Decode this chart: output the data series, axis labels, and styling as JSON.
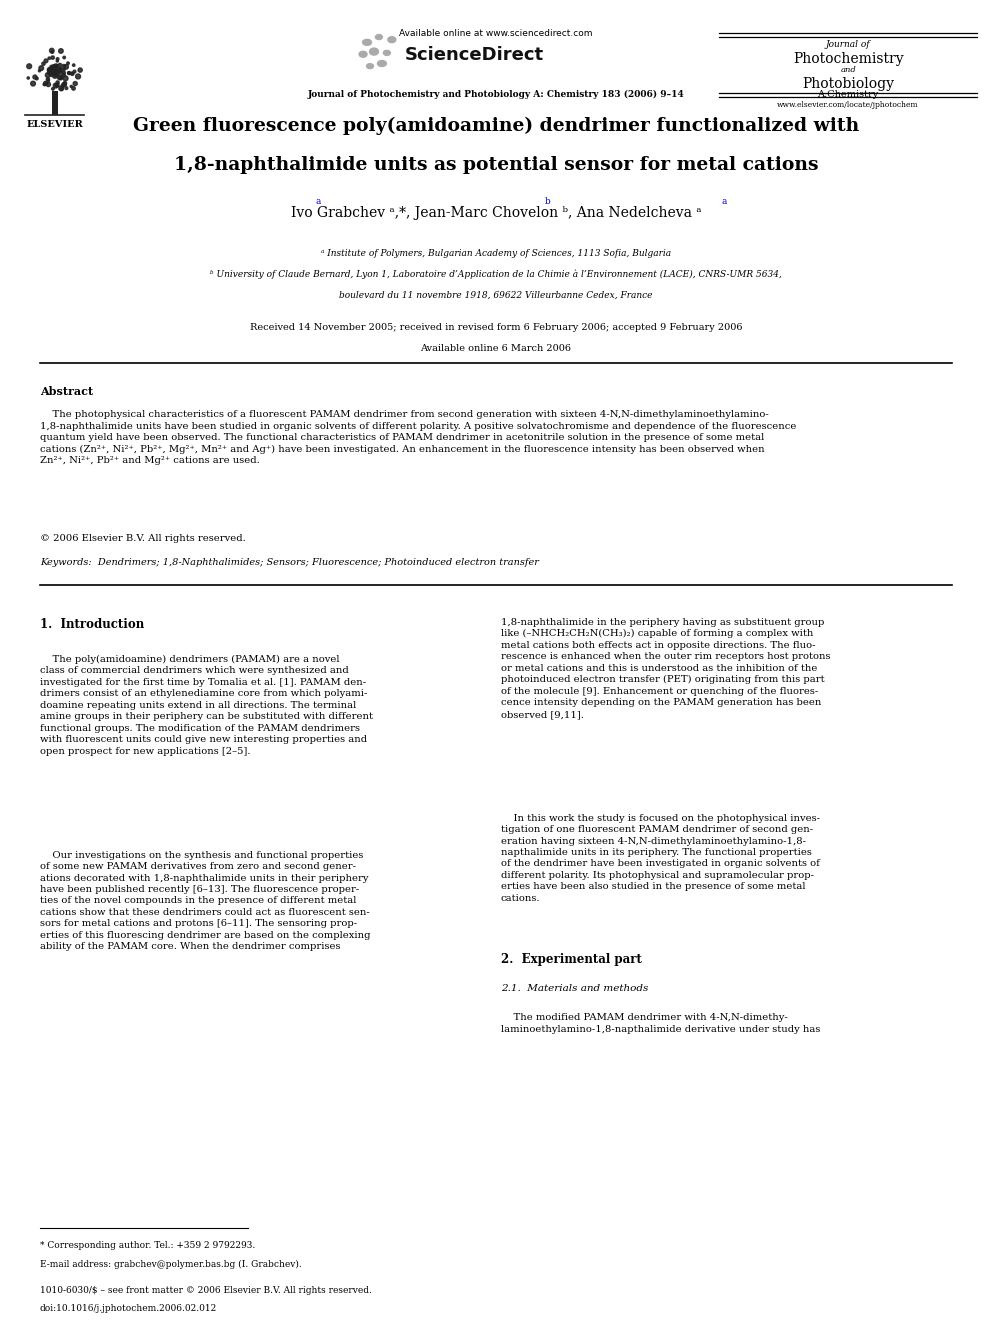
{
  "bg_color": "#ffffff",
  "page_width": 9.92,
  "page_height": 13.23,
  "header": {
    "available_online": "Available online at www.sciencedirect.com",
    "journal_line1": "Journal of Photochemistry and Photobiology A: Chemistry 183 (2006) 9–14",
    "journal_right_line1": "Journal of",
    "journal_right_line2": "Photochemistry",
    "journal_right_line3": "and",
    "journal_right_line4": "Photobiology",
    "journal_right_line5": "A:Chemistry",
    "website": "www.elsevier.com/locate/jphotochem"
  },
  "title_line1": "Green fluorescence poly(amidoamine) dendrimer functionalized with",
  "title_line2": "1,8-naphthalimide units as potential sensor for metal cations",
  "affil1": "ᵃ Institute of Polymers, Bulgarian Academy of Sciences, 1113 Sofia, Bulgaria",
  "affil2": "ᵇ University of Claude Bernard, Lyon 1, Laboratoire d’Application de la Chimie à l’Environnement (LACE), CNRS-UMR 5634,",
  "affil3": "boulevard du 11 novembre 1918, 69622 Villeurbanne Cedex, France",
  "received": "Received 14 November 2005; received in revised form 6 February 2006; accepted 9 February 2006",
  "available": "Available online 6 March 2006",
  "abstract_title": "Abstract",
  "copyright": "© 2006 Elsevier B.V. All rights reserved.",
  "keywords": "Keywords:  Dendrimers; 1,8-Naphthalimides; Sensors; Fluorescence; Photoinduced electron transfer",
  "section1_title": "1.  Introduction",
  "section2_title": "2.  Experimental part",
  "section2_sub1": "2.1.  Materials and methods",
  "footnote_line1": "* Corresponding author. Tel.: +359 2 9792293.",
  "footnote_line2": "E-mail address: grabchev@polymer.bas.bg (I. Grabchev).",
  "footer_line1": "1010-6030/$ – see front matter © 2006 Elsevier B.V. All rights reserved.",
  "footer_line2": "doi:10.1016/j.jphotochem.2006.02.012"
}
